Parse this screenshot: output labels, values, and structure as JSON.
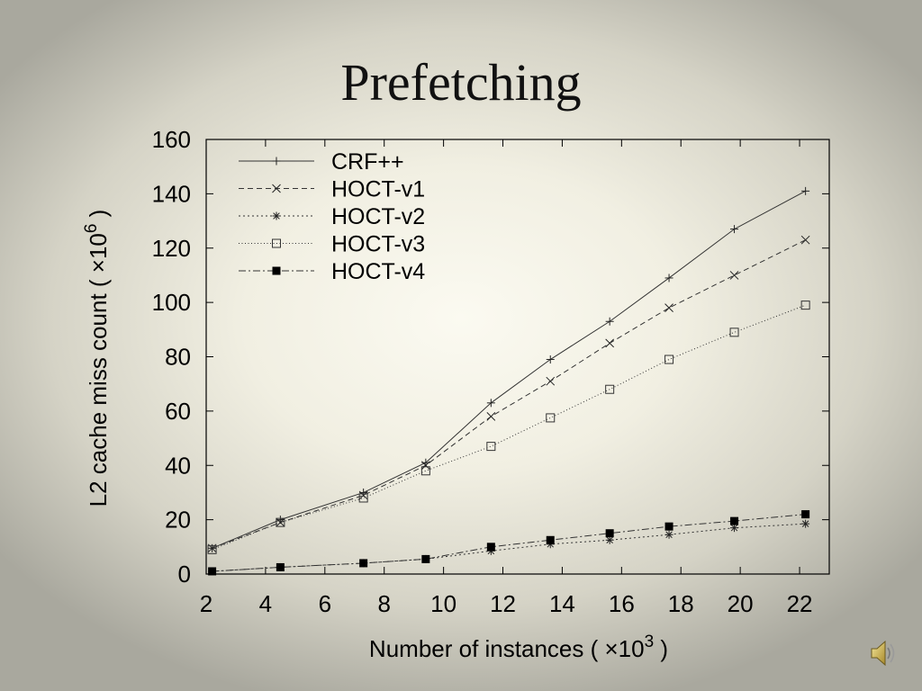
{
  "slide": {
    "title": "Prefetching"
  },
  "axis_text": {
    "y_prefix": "L2 cache miss count ( ",
    "y_times": "×",
    "y_base": "10",
    "y_exp": "6",
    "y_suffix": " )",
    "x_prefix": "Number of instances ( ",
    "x_times": "×",
    "x_base": "10",
    "x_exp": "3",
    "x_suffix": " )"
  },
  "speaker": {
    "icon": "speaker-icon"
  },
  "chart_data": {
    "type": "line",
    "title": "Prefetching",
    "xlabel": "Number of instances ( ×10^3 )",
    "ylabel": "L2 cache miss count ( ×10^6 )",
    "xlim": [
      2,
      23
    ],
    "ylim": [
      0,
      160
    ],
    "xticks": [
      2,
      4,
      6,
      8,
      10,
      12,
      14,
      16,
      18,
      20,
      22
    ],
    "yticks": [
      0,
      20,
      40,
      60,
      80,
      100,
      120,
      140,
      160
    ],
    "grid": false,
    "legend_position": "top-left",
    "x": [
      2.2,
      4.5,
      7.3,
      9.4,
      11.6,
      13.6,
      15.6,
      17.6,
      19.8,
      22.2
    ],
    "series": [
      {
        "name": "CRF++",
        "marker": "plus",
        "dash": "solid",
        "values": [
          9.5,
          20,
          30,
          41,
          63,
          79,
          93,
          109,
          127,
          141
        ]
      },
      {
        "name": "HOCT-v1",
        "marker": "cross",
        "dash": "dashed",
        "values": [
          9.5,
          19,
          29,
          40,
          58,
          71,
          85,
          98,
          110,
          123
        ]
      },
      {
        "name": "HOCT-v2",
        "marker": "star",
        "dash": "dotted",
        "values": [
          1,
          2.5,
          4,
          5.5,
          8.5,
          11,
          12.5,
          14.5,
          17,
          18.5
        ]
      },
      {
        "name": "HOCT-v3",
        "marker": "open-square",
        "dash": "fine-dotted",
        "values": [
          9,
          19,
          28,
          38,
          47,
          57.5,
          68,
          79,
          89,
          99
        ]
      },
      {
        "name": "HOCT-v4",
        "marker": "filled-square",
        "dash": "dash-dot",
        "values": [
          1,
          2.5,
          4,
          5.5,
          10,
          12.5,
          15,
          17.5,
          19.5,
          22
        ]
      }
    ]
  }
}
